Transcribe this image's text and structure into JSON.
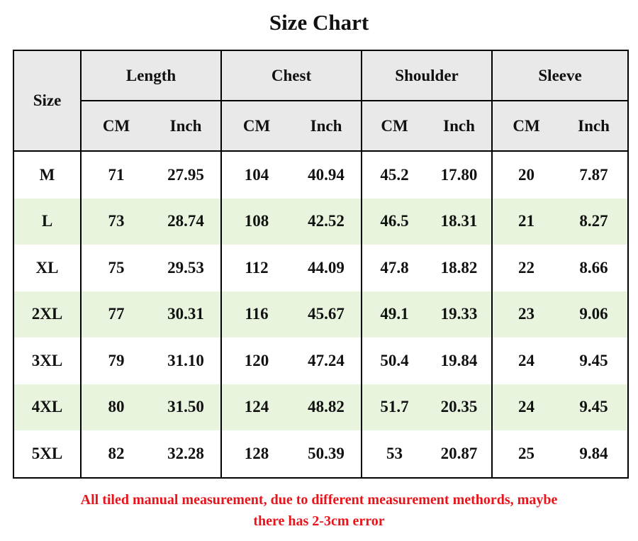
{
  "title": "Size Chart",
  "table": {
    "size_header": "Size",
    "groups": [
      {
        "name": "Length",
        "units": [
          "CM",
          "Inch"
        ]
      },
      {
        "name": "Chest",
        "units": [
          "CM",
          "Inch"
        ]
      },
      {
        "name": "Shoulder",
        "units": [
          "CM",
          "Inch"
        ]
      },
      {
        "name": "Sleeve",
        "units": [
          "CM",
          "Inch"
        ]
      }
    ],
    "rows": [
      [
        "M",
        "71",
        "27.95",
        "104",
        "40.94",
        "45.2",
        "17.80",
        "20",
        "7.87"
      ],
      [
        "L",
        "73",
        "28.74",
        "108",
        "42.52",
        "46.5",
        "18.31",
        "21",
        "8.27"
      ],
      [
        "XL",
        "75",
        "29.53",
        "112",
        "44.09",
        "47.8",
        "18.82",
        "22",
        "8.66"
      ],
      [
        "2XL",
        "77",
        "30.31",
        "116",
        "45.67",
        "49.1",
        "19.33",
        "23",
        "9.06"
      ],
      [
        "3XL",
        "79",
        "31.10",
        "120",
        "47.24",
        "50.4",
        "19.84",
        "24",
        "9.45"
      ],
      [
        "4XL",
        "80",
        "31.50",
        "124",
        "48.82",
        "51.7",
        "20.35",
        "24",
        "9.45"
      ],
      [
        "5XL",
        "82",
        "32.28",
        "128",
        "50.39",
        "53",
        "20.87",
        "25",
        "9.84"
      ]
    ]
  },
  "note": [
    "All tiled manual measurement, due to different measurement methords, maybe",
    "there has 2-3cm error"
  ]
}
